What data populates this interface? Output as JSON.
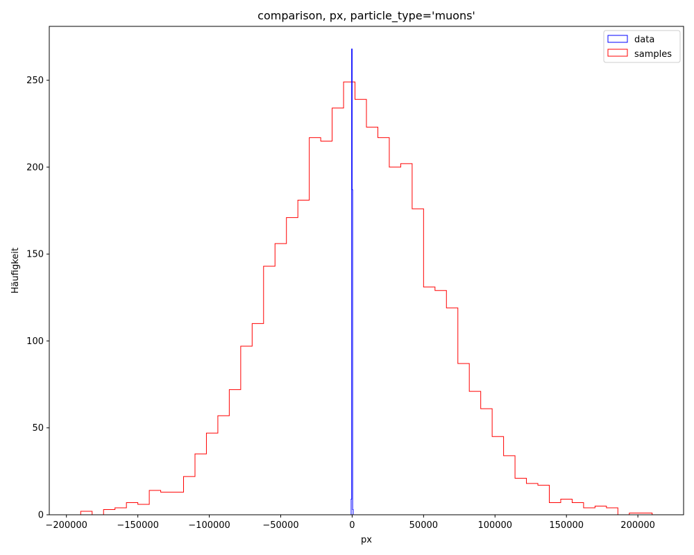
{
  "chart_data": {
    "type": "histogram",
    "title": "comparison, px, particle_type='muons'",
    "xlabel": "px",
    "ylabel": "Häufigkeit",
    "xlim": [
      -212000,
      232000
    ],
    "ylim": [
      0,
      281
    ],
    "x_ticks": [
      -200000,
      -150000,
      -100000,
      -50000,
      0,
      50000,
      100000,
      150000,
      200000
    ],
    "x_tick_labels": [
      "−200000",
      "−150000",
      "−100000",
      "−50000",
      "0",
      "50000",
      "100000",
      "150000",
      "200000"
    ],
    "y_ticks": [
      0,
      50,
      100,
      150,
      200,
      250
    ],
    "y_tick_labels": [
      "0",
      "50",
      "100",
      "150",
      "200",
      "250"
    ],
    "legend": {
      "placement": "top-right",
      "entries": [
        "data",
        "samples"
      ]
    },
    "series": [
      {
        "name": "data",
        "color": "#0000ff",
        "histtype": "step",
        "bin_edges": [
          -700,
          -350,
          0,
          350,
          700
        ],
        "counts": [
          9,
          268,
          187,
          3
        ]
      },
      {
        "name": "samples",
        "color": "#ff0000",
        "histtype": "step",
        "bin_edges": [
          -190000,
          -182000,
          -174000,
          -166000,
          -158000,
          -150000,
          -142000,
          -134000,
          -126000,
          -118000,
          -110000,
          -102000,
          -94000,
          -86000,
          -78000,
          -70000,
          -62000,
          -54000,
          -46000,
          -38000,
          -30000,
          -22000,
          -14000,
          -6000,
          2000,
          10000,
          18000,
          26000,
          34000,
          42000,
          50000,
          58000,
          66000,
          74000,
          82000,
          90000,
          98000,
          106000,
          114000,
          122000,
          130000,
          138000,
          146000,
          154000,
          162000,
          170000,
          178000,
          186000,
          194000,
          202000,
          210000
        ],
        "counts": [
          2,
          0,
          3,
          4,
          7,
          6,
          14,
          13,
          13,
          22,
          35,
          47,
          57,
          72,
          97,
          110,
          143,
          156,
          171,
          181,
          217,
          215,
          234,
          249,
          239,
          223,
          217,
          200,
          202,
          176,
          131,
          129,
          119,
          87,
          71,
          61,
          45,
          34,
          21,
          18,
          17,
          7,
          9,
          7,
          4,
          5,
          4,
          0,
          1,
          1
        ]
      }
    ]
  }
}
